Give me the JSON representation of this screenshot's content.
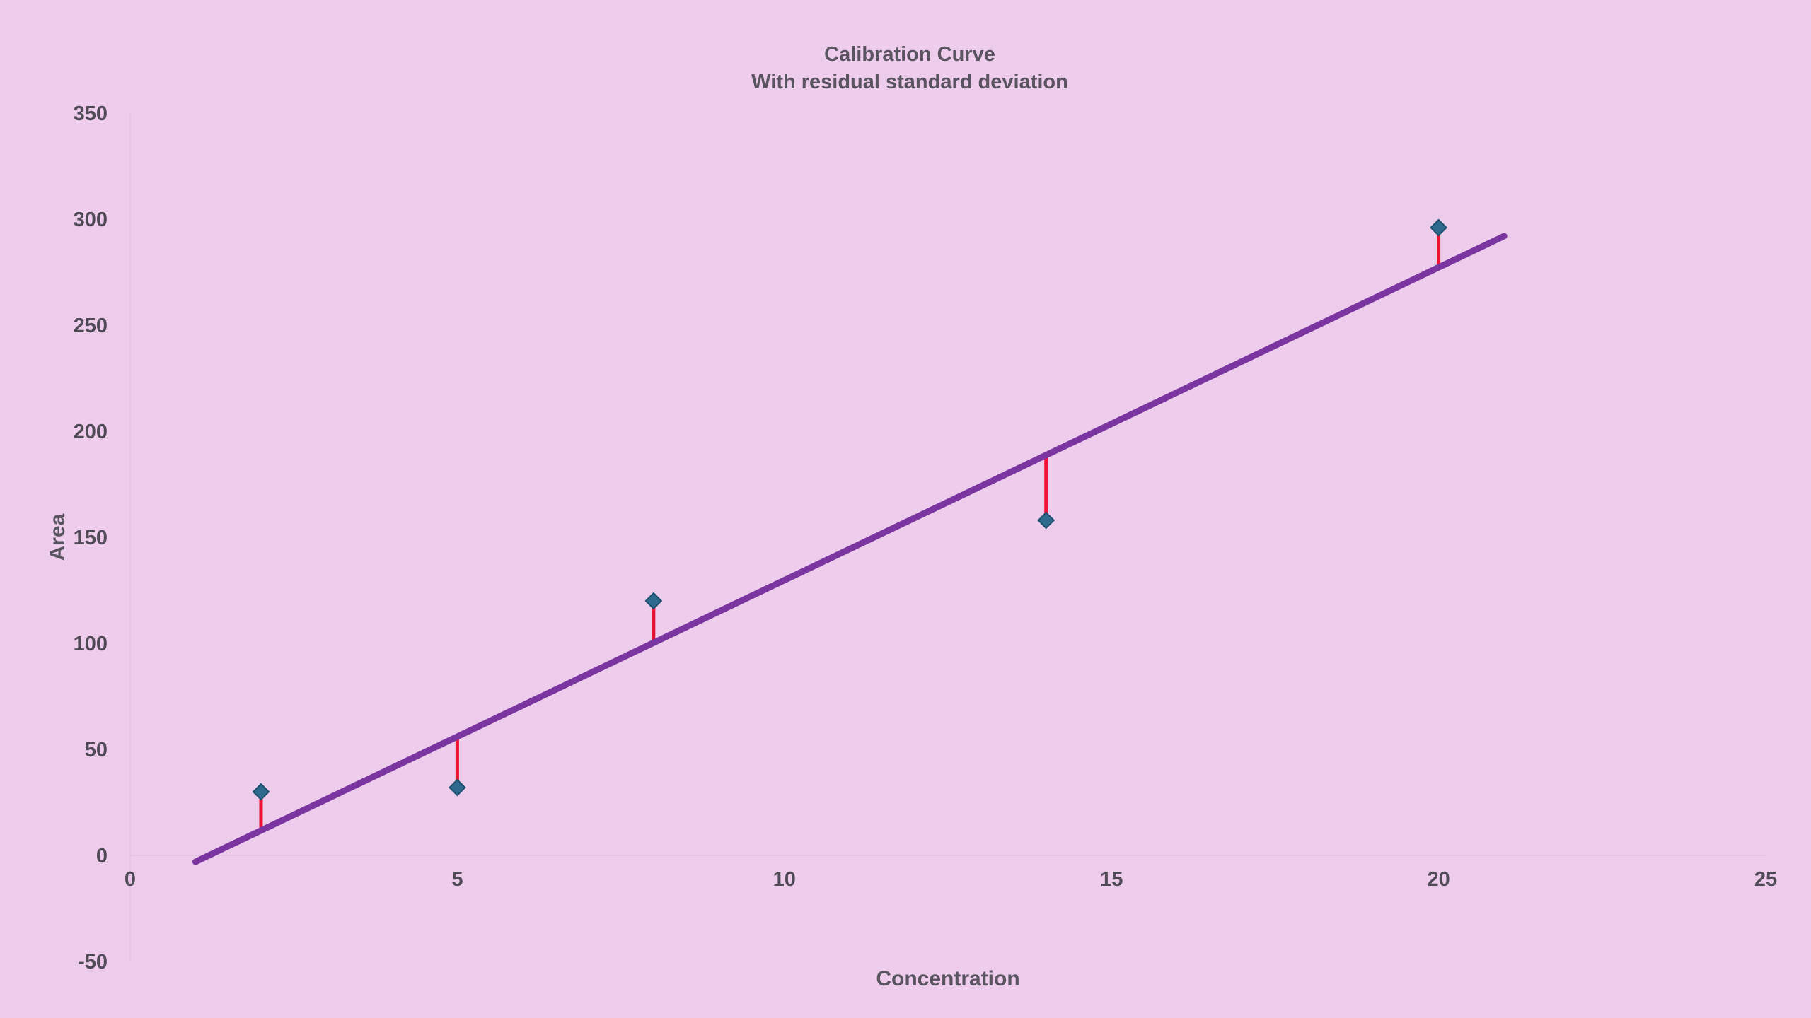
{
  "chart_data": {
    "type": "scatter",
    "title": "Calibration Curve",
    "subtitle": "With residual standard deviation",
    "xlabel": "Concentration",
    "ylabel": "Area",
    "xlim": [
      0,
      25
    ],
    "ylim": [
      -50,
      350
    ],
    "x_ticks": [
      "0",
      "5",
      "10",
      "15",
      "20",
      "25"
    ],
    "y_ticks": [
      "-50",
      "0",
      "50",
      "100",
      "150",
      "200",
      "250",
      "300",
      "350"
    ],
    "grid": false,
    "legend": "none",
    "series": [
      {
        "type": "scatter",
        "marker": "diamond",
        "color": "#2e6a8e",
        "points": [
          {
            "x": 2,
            "y": 30
          },
          {
            "x": 5,
            "y": 32
          },
          {
            "x": 8,
            "y": 120
          },
          {
            "x": 14,
            "y": 158
          },
          {
            "x": 20,
            "y": 296
          }
        ]
      },
      {
        "type": "line",
        "color": "#7a35a0",
        "points": [
          {
            "x": 1,
            "y": -3
          },
          {
            "x": 21,
            "y": 292
          }
        ]
      },
      {
        "type": "residual-bars",
        "color": "#ee1133",
        "segments": [
          {
            "x": 2,
            "y_from": 30,
            "y_to": 11
          },
          {
            "x": 5,
            "y_from": 32,
            "y_to": 56
          },
          {
            "x": 8,
            "y_from": 120,
            "y_to": 100
          },
          {
            "x": 14,
            "y_from": 158,
            "y_to": 189
          },
          {
            "x": 20,
            "y_from": 296,
            "y_to": 277
          }
        ]
      }
    ]
  }
}
